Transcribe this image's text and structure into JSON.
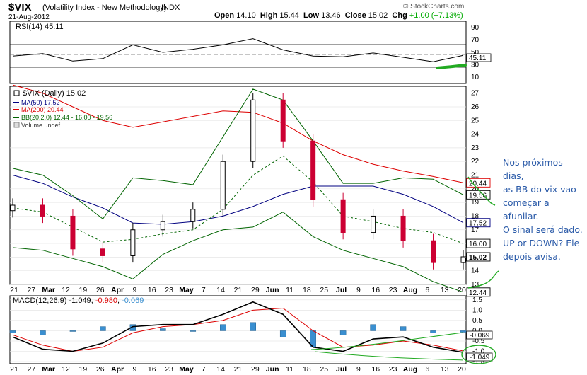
{
  "header": {
    "symbol": "$VIX",
    "description": "(Volatility Index - New Methodology)",
    "exchange": "INDX",
    "date": "21-Aug-2012",
    "open_label": "Open",
    "open": "14.10",
    "high_label": "High",
    "high": "15.44",
    "low_label": "Low",
    "low": "13.46",
    "close_label": "Close",
    "close": "15.02",
    "chg_label": "Chg",
    "chg": "+1.00 (+7.13%)",
    "brand": "© StockCharts.com"
  },
  "panels": {
    "rsi": {
      "label": "RSI(14)",
      "value": "45.11",
      "ticks": [
        "90",
        "70",
        "50",
        "30",
        "10"
      ],
      "current_tag": "45.11"
    },
    "price": {
      "legend_main": "$VIX (Daily) 15.02",
      "legend_ma50": "MA(50) 17.52",
      "legend_ma200": "MA(200) 20.44",
      "legend_bb": "BB(20,2.0) 12.44 - 16.00 - 19.56",
      "legend_vol": "Volume undef",
      "ticks": [
        "27",
        "26",
        "25",
        "24",
        "23",
        "22",
        "21",
        "20",
        "19",
        "18",
        "17",
        "16",
        "15",
        "14",
        "13"
      ],
      "tags": {
        "ma200": "20.44",
        "bb_upper": "19.56",
        "ma50": "17.52",
        "bb_mid": "16.00",
        "close": "15.02",
        "bb_lower": "12.44"
      }
    },
    "macd": {
      "label_prefix": "MACD(12,26,9)",
      "macd": "-1.049",
      "signal": "-0.980",
      "hist": "-0.069",
      "ticks": [
        "1.5",
        "1.0",
        "0.5",
        "0.0",
        "-0.5",
        "-1.0",
        "-1.5"
      ],
      "tags": {
        "hist": "-0.069",
        "macd": "-1.049"
      }
    }
  },
  "xaxis": [
    "21",
    "27",
    "Mar",
    "12",
    "19",
    "26",
    "Apr",
    "9",
    "16",
    "23",
    "May",
    "7",
    "14",
    "21",
    "29",
    "Jun",
    "11",
    "18",
    "25",
    "Jul",
    "9",
    "16",
    "23",
    "Aug",
    "6",
    "13",
    "20"
  ],
  "annotation": {
    "lines": [
      "Nos próximos dias,",
      "as BB do vix vao",
      "começar a afunilar.",
      "O sinal será dado.",
      "UP or DOWN? Ele",
      "depois avisa."
    ]
  },
  "colors": {
    "ma50": "#000080",
    "ma200": "#dd0000",
    "bb": "#006400",
    "up": "#000000",
    "down": "#cc0033",
    "hist": "#3a8fd0",
    "annotation": "#2a5aa8",
    "marker": "#22aa22"
  },
  "chart_data": {
    "type": "line",
    "title": "$VIX (Volatility Index - New Methodology) INDX",
    "x": [
      "Feb 21",
      "Mar 1",
      "Mar 12",
      "Mar 26",
      "Apr 9",
      "Apr 23",
      "May 7",
      "May 21",
      "Jun 1",
      "Jun 11",
      "Jun 25",
      "Jul 9",
      "Jul 23",
      "Aug 6",
      "Aug 13",
      "Aug 21"
    ],
    "series": [
      {
        "name": "$VIX (Daily)",
        "values": [
          18.8,
          18.0,
          15.6,
          15.1,
          17.0,
          17.6,
          18.5,
          22.0,
          26.5,
          23.5,
          19.2,
          16.8,
          18.0,
          16.2,
          14.6,
          15.02
        ]
      },
      {
        "name": "MA(50)",
        "values": [
          21.0,
          20.4,
          19.4,
          18.6,
          17.5,
          17.4,
          17.6,
          18.0,
          18.7,
          19.6,
          20.2,
          20.2,
          20.2,
          19.6,
          18.7,
          17.52
        ]
      },
      {
        "name": "MA(200)",
        "values": [
          27.6,
          27.0,
          26.0,
          25.0,
          24.5,
          24.9,
          25.3,
          25.7,
          25.6,
          24.8,
          23.5,
          22.5,
          21.8,
          21.3,
          20.9,
          20.44
        ]
      },
      {
        "name": "BB upper",
        "values": [
          21.5,
          21.0,
          19.5,
          17.8,
          20.8,
          20.6,
          20.3,
          23.8,
          27.3,
          26.5,
          23.5,
          20.4,
          20.4,
          20.8,
          20.7,
          19.56
        ]
      },
      {
        "name": "BB mid",
        "values": [
          18.6,
          18.3,
          17.2,
          16.1,
          16.3,
          16.7,
          17.0,
          18.5,
          21.0,
          22.4,
          20.5,
          18.0,
          17.6,
          17.1,
          16.8,
          16.0
        ]
      },
      {
        "name": "BB lower",
        "values": [
          15.7,
          15.5,
          14.9,
          14.3,
          13.4,
          15.2,
          16.2,
          17.0,
          17.2,
          18.3,
          16.5,
          15.5,
          14.9,
          14.3,
          13.2,
          12.44
        ]
      }
    ],
    "rsi": [
      44,
      48,
      36,
      40,
      62,
      50,
      55,
      62,
      72,
      54,
      44,
      43,
      49,
      42,
      35,
      45.11
    ],
    "macd": [
      -0.3,
      -0.9,
      -1.0,
      -0.6,
      0.2,
      0.3,
      0.3,
      0.8,
      1.4,
      0.8,
      -0.8,
      -1.0,
      -0.4,
      -0.3,
      -0.8,
      -1.049
    ],
    "macd_signal": [
      -0.2,
      -0.7,
      -1.0,
      -0.8,
      -0.1,
      0.2,
      0.3,
      0.5,
      1.0,
      1.1,
      0.0,
      -0.8,
      -0.7,
      -0.5,
      -0.7,
      -0.98
    ],
    "ylim_price": [
      13,
      27.5
    ],
    "ylim_rsi": [
      0,
      100
    ],
    "ylim_macd": [
      -1.6,
      1.7
    ]
  }
}
